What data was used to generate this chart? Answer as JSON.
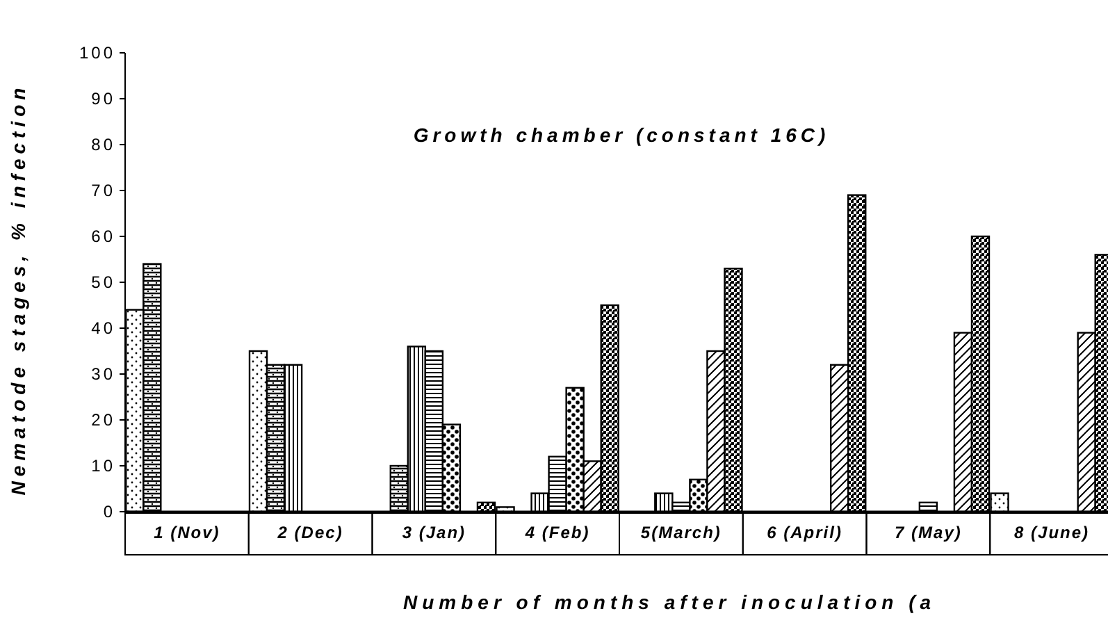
{
  "chart_data": {
    "type": "bar",
    "title": "Growth chamber (constant 16C)",
    "xlabel": "Number of months after inoculation (a",
    "ylabel": "Nematode stages, % infection",
    "categories": [
      "1 (Nov)",
      "2 (Dec)",
      "3 (Jan)",
      "4 (Feb)",
      "5(March)",
      "6 (April)",
      "7 (May)",
      "8 (June)"
    ],
    "series": [
      {
        "color": "#000000",
        "values": [
          44,
          35,
          null,
          1,
          null,
          null,
          null,
          4
        ]
      },
      {
        "color": "#000000",
        "values": [
          54,
          32,
          10,
          null,
          null,
          null,
          null,
          null
        ]
      },
      {
        "color": "#000000",
        "values": [
          null,
          32,
          36,
          4,
          4,
          null,
          null,
          null
        ]
      },
      {
        "color": "#000000",
        "values": [
          null,
          null,
          35,
          12,
          2,
          null,
          2,
          null
        ]
      },
      {
        "color": "#000000",
        "values": [
          null,
          null,
          19,
          27,
          7,
          null,
          null,
          null
        ]
      },
      {
        "color": "#000000",
        "values": [
          null,
          null,
          null,
          11,
          35,
          32,
          39,
          39
        ]
      },
      {
        "color": "#000000",
        "values": [
          null,
          null,
          2,
          45,
          53,
          69,
          60,
          56
        ]
      }
    ],
    "ylim": [
      0,
      100
    ],
    "yticks": [
      0,
      10,
      20,
      30,
      40,
      50,
      60,
      70,
      80,
      90,
      100
    ],
    "grid": false
  }
}
